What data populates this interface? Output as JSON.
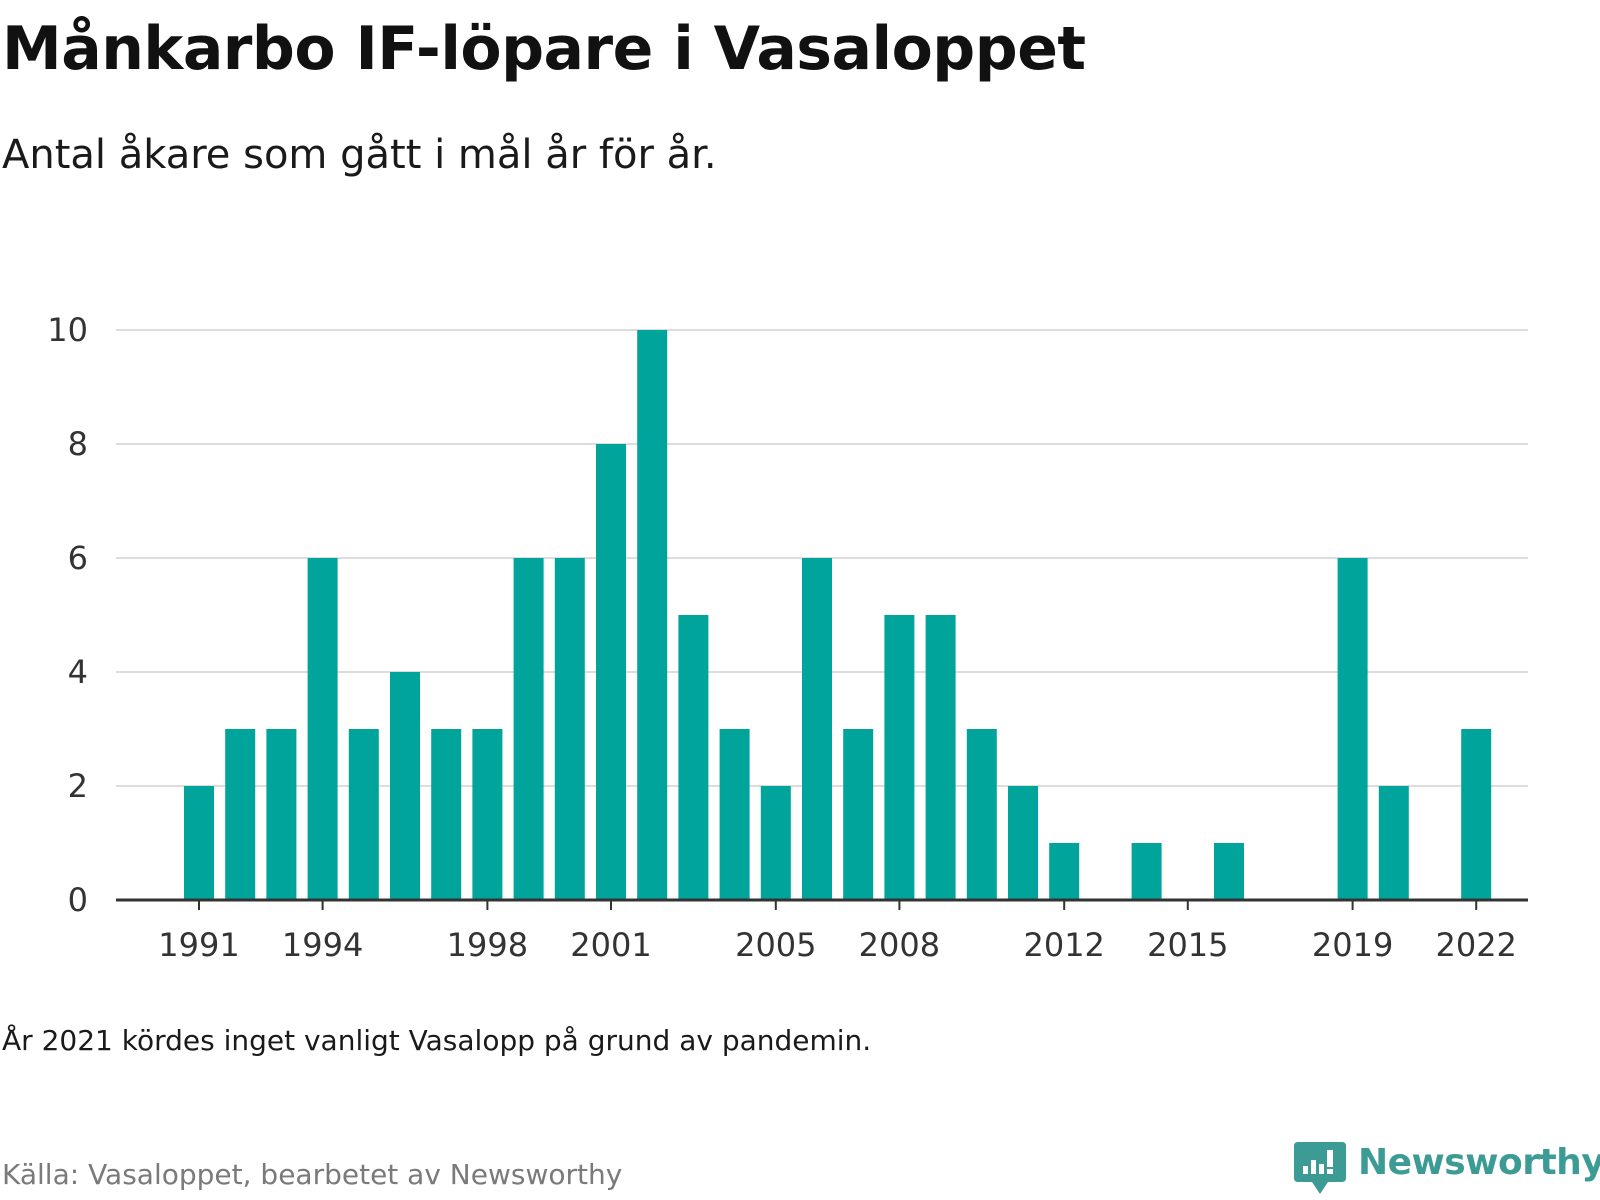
{
  "title": "Månkarbo IF-löpare i Vasaloppet",
  "subtitle": "Antal åkare som gått i mål år för år.",
  "note": "År 2021 kördes inget vanligt Vasalopp på grund av pandemin.",
  "source": "Källa: Vasaloppet, bearbetet av Newsworthy",
  "brand": {
    "label": "Newsworthy",
    "icon": "newsworthy-logo-icon",
    "color": "#3d9b96"
  },
  "chart_data": {
    "type": "bar",
    "color": "#00a49a",
    "x": [
      1991,
      1992,
      1993,
      1994,
      1995,
      1996,
      1997,
      1998,
      1999,
      2000,
      2001,
      2002,
      2003,
      2004,
      2005,
      2006,
      2007,
      2008,
      2009,
      2010,
      2011,
      2012,
      2013,
      2014,
      2015,
      2016,
      2017,
      2018,
      2019,
      2020,
      2021,
      2022
    ],
    "values": [
      2,
      3,
      3,
      6,
      3,
      4,
      3,
      3,
      6,
      6,
      8,
      10,
      5,
      3,
      2,
      6,
      3,
      5,
      5,
      3,
      2,
      1,
      0,
      1,
      0,
      1,
      0,
      0,
      6,
      2,
      0,
      3
    ],
    "x_tick_labels": [
      "1991",
      "1994",
      "1998",
      "2001",
      "2005",
      "2008",
      "2012",
      "2015",
      "2019",
      "2022"
    ],
    "y_tick_labels": [
      "0",
      "2",
      "4",
      "6",
      "8",
      "10"
    ],
    "ylim": [
      0,
      10
    ],
    "grid": true,
    "legend": "none"
  }
}
